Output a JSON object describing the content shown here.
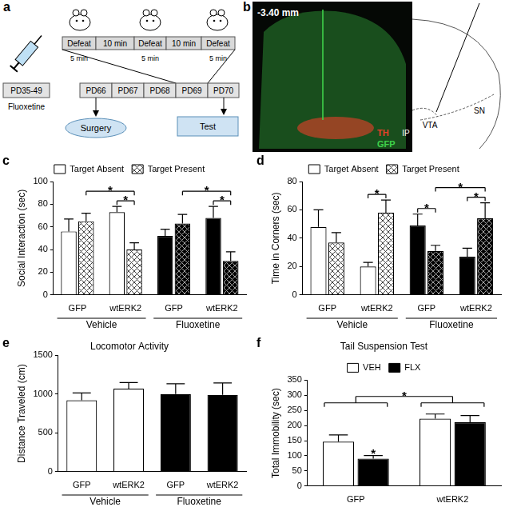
{
  "panels": {
    "a": {
      "label": "a",
      "schedule": [
        "Defeat",
        "10 min",
        "Defeat",
        "10 min",
        "Defeat"
      ],
      "defeat_length": [
        "5 min",
        "5 min",
        "5 min"
      ],
      "timeline": [
        "PD35-49",
        "PD66",
        "PD67",
        "PD68",
        "PD69",
        "PD70"
      ],
      "drug": "Fluoxetine",
      "events": [
        "Surgery",
        "Test"
      ]
    },
    "b": {
      "label": "b",
      "section": "-3.40 mm",
      "stains": [
        {
          "name": "TH",
          "color": "#e8402a"
        },
        {
          "name": "GFP",
          "color": "#3fd14a"
        }
      ],
      "regions": [
        "VTA",
        "IP",
        "SN"
      ]
    }
  },
  "chart_data": [
    {
      "panel": "c",
      "type": "bar",
      "categories": [
        "GFP",
        "wtERK2",
        "GFP",
        "wtERK2"
      ],
      "groups": [
        "Vehicle",
        "Vehicle",
        "Fluoxetine",
        "Fluoxetine"
      ],
      "y_label": "Social Interaction (sec)",
      "ylim": [
        0,
        100
      ],
      "yticks": [
        0,
        20,
        40,
        60,
        80,
        100
      ],
      "legend": "top",
      "series": [
        {
          "name": "Target Absent",
          "colors": [
            "#ffffff",
            "#ffffff",
            "#000000",
            "#000000"
          ],
          "values": [
            56,
            73,
            52,
            68
          ],
          "errors": [
            11,
            5,
            6,
            10
          ]
        },
        {
          "name": "Target Present",
          "colors": [
            "#ffffff",
            "#ffffff",
            "#000000",
            "#000000"
          ],
          "marker": "crosshatch",
          "values": [
            65,
            40,
            63,
            30
          ],
          "errors": [
            7,
            6,
            8,
            8
          ]
        }
      ],
      "comparisons": [
        {
          "label": "*",
          "a": [
            1,
            0
          ],
          "b": [
            1,
            1
          ]
        },
        {
          "label": "*",
          "a": [
            0,
            1
          ],
          "b": [
            1,
            1
          ]
        },
        {
          "label": "*",
          "a": [
            3,
            0
          ],
          "b": [
            3,
            1
          ]
        },
        {
          "label": "*",
          "a": [
            2,
            1
          ],
          "b": [
            3,
            1
          ]
        }
      ]
    },
    {
      "panel": "d",
      "type": "bar",
      "categories": [
        "GFP",
        "wtERK2",
        "GFP",
        "wtERK2"
      ],
      "groups": [
        "Vehicle",
        "Vehicle",
        "Fluoxetine",
        "Fluoxetine"
      ],
      "y_label": "Time in Corners (sec)",
      "ylim": [
        0,
        80
      ],
      "yticks": [
        0,
        20,
        40,
        60,
        80
      ],
      "legend": "top",
      "series": [
        {
          "name": "Target Absent",
          "colors": [
            "#ffffff",
            "#ffffff",
            "#000000",
            "#000000"
          ],
          "values": [
            48,
            20,
            49,
            27
          ],
          "errors": [
            12,
            3,
            8,
            6
          ]
        },
        {
          "name": "Target Present",
          "colors": [
            "#ffffff",
            "#ffffff",
            "#000000",
            "#000000"
          ],
          "marker": "crosshatch",
          "values": [
            37,
            58,
            31,
            54
          ],
          "errors": [
            7,
            9,
            4,
            11
          ]
        }
      ],
      "comparisons": [
        {
          "label": "*",
          "a": [
            1,
            0
          ],
          "b": [
            1,
            1
          ]
        },
        {
          "label": "*",
          "a": [
            2,
            0
          ],
          "b": [
            2,
            1
          ]
        },
        {
          "label": "*",
          "a": [
            3,
            0
          ],
          "b": [
            3,
            1
          ]
        },
        {
          "label": "*",
          "a": [
            2,
            1
          ],
          "b": [
            3,
            1
          ]
        }
      ]
    },
    {
      "panel": "e",
      "type": "bar",
      "title": "Locomotor Activity",
      "categories": [
        "GFP",
        "wtERK2",
        "GFP",
        "wtERK2"
      ],
      "groups": [
        "Vehicle",
        "Vehicle",
        "Fluoxetine",
        "Fluoxetine"
      ],
      "y_label": "Distance Traveled (cm)",
      "ylim": [
        0,
        1500
      ],
      "yticks": [
        0,
        500,
        1000,
        1500
      ],
      "series": [
        {
          "colors": [
            "#ffffff",
            "#ffffff",
            "#000000",
            "#000000"
          ],
          "values": [
            920,
            1070,
            1000,
            990
          ],
          "errors": [
            95,
            80,
            135,
            155
          ]
        }
      ]
    },
    {
      "panel": "f",
      "type": "bar",
      "title": "Tail Suspension Test",
      "categories": [
        "GFP",
        "wtERK2"
      ],
      "y_label": "Total Immobility (sec)",
      "ylim": [
        0,
        350
      ],
      "yticks": [
        0,
        50,
        100,
        150,
        200,
        250,
        300,
        350
      ],
      "legend": "top",
      "series": [
        {
          "name": "VEH",
          "color": "#ffffff",
          "values": [
            147,
            223
          ],
          "errors": [
            22,
            15
          ]
        },
        {
          "name": "FLX",
          "color": "#000000",
          "values": [
            91,
            211
          ],
          "errors": [
            10,
            22
          ]
        }
      ],
      "comparisons": [
        {
          "label": "*",
          "a": [
            0,
            1
          ]
        },
        {
          "label": "*",
          "a": [
            0,
            null
          ],
          "b": [
            1,
            null
          ]
        }
      ]
    }
  ]
}
